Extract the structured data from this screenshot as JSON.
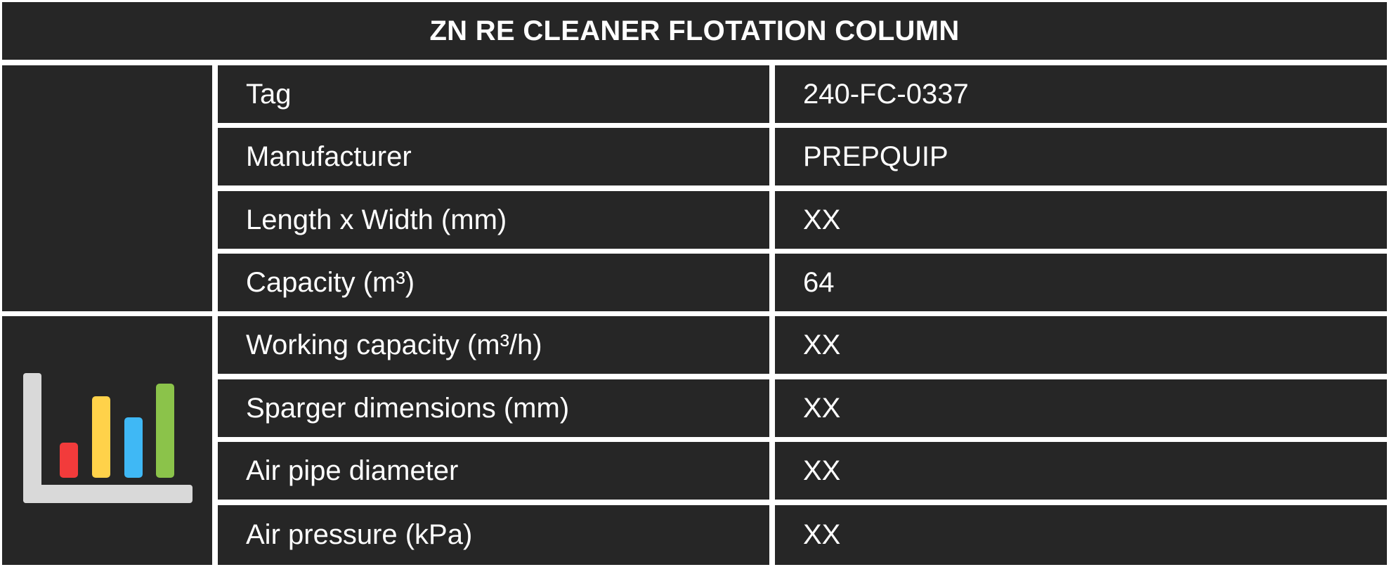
{
  "title": "ZN RE CLEANER FLOTATION COLUMN",
  "rows": [
    {
      "label": "Tag",
      "value": "240-FC-0337"
    },
    {
      "label": "Manufacturer",
      "value": "PREPQUIP"
    },
    {
      "label": "Length x Width (mm)",
      "value": "XX"
    },
    {
      "label": "Capacity (m³)",
      "value": "64"
    },
    {
      "label": "Working capacity (m³/h)",
      "value": "XX"
    },
    {
      "label": "Sparger dimensions (mm)",
      "value": "XX"
    },
    {
      "label": "Air pipe diameter",
      "value": "XX"
    },
    {
      "label": "Air pressure (kPa)",
      "value": "XX"
    }
  ],
  "icons": {
    "section_icon": "bar-chart-icon"
  },
  "colors": {
    "cell_background": "#262626",
    "text": "#ffffff",
    "grid_lines": "#ffffff",
    "icon_axis": "#d9d9d9",
    "icon_bars": [
      "#f23b3b",
      "#ffd24a",
      "#3fb8f5",
      "#8bc34a"
    ]
  }
}
